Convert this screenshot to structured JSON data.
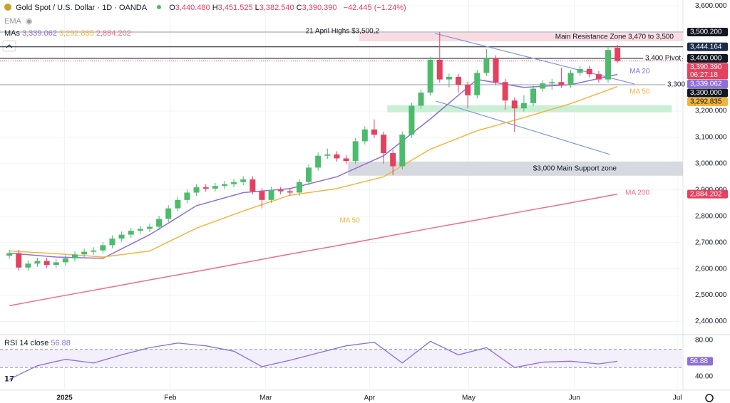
{
  "header": {
    "symbol": "Gold Spot / U.S. Dollar · 1D · OANDA",
    "ohlc": [
      {
        "key": "O",
        "value": "3,440.480"
      },
      {
        "key": "H",
        "value": "3,451.525"
      },
      {
        "key": "L",
        "value": "3,382.540"
      },
      {
        "key": "C",
        "value": "3,390.390"
      }
    ],
    "change": "−42.445 (−1.24%)",
    "ema": "EMA",
    "mas_label": "MAs",
    "mas_values": [
      "3,339.062",
      "3,292.835",
      "2,884.202"
    ]
  },
  "chart_data": [
    {
      "type": "candlestick",
      "up_color": "#4cbb6c",
      "down_color": "#e5405e",
      "open": [
        2650,
        2660,
        2605,
        2620,
        2630,
        2615,
        2625,
        2640,
        2655,
        2665,
        2670,
        2690,
        2715,
        2730,
        2745,
        2752,
        2760,
        2790,
        2830,
        2862,
        2890,
        2910,
        2905,
        2915,
        2922,
        2930,
        2940,
        2895,
        2862,
        2900,
        2895,
        2890,
        2930,
        2985,
        3030,
        3035,
        3020,
        3010,
        3085,
        3130,
        3110,
        3040,
        2990,
        3110,
        3220,
        3270,
        3395,
        3320,
        3330,
        3300,
        3260,
        3345,
        3400,
        3310,
        3240,
        3210,
        3230,
        3285,
        3305,
        3310,
        3300,
        3345,
        3360,
        3340,
        3320,
        3440.48
      ],
      "high": [
        2672,
        2672,
        2632,
        2642,
        2642,
        2637,
        2652,
        2667,
        2677,
        2682,
        2702,
        2727,
        2742,
        2757,
        2764,
        2772,
        2802,
        2842,
        2874,
        2902,
        2922,
        2922,
        2927,
        2934,
        2942,
        2952,
        2952,
        2907,
        2912,
        2912,
        2907,
        2942,
        2997,
        3042,
        3057,
        3047,
        3032,
        3097,
        3142,
        3168,
        3122,
        3052,
        3122,
        3232,
        3282,
        3407,
        3500,
        3342,
        3342,
        3312,
        3357,
        3435,
        3412,
        3322,
        3252,
        3260,
        3297,
        3317,
        3322,
        3365,
        3357,
        3372,
        3372,
        3352,
        3444,
        3451.525
      ],
      "low": [
        2638,
        2593,
        2593,
        2608,
        2603,
        2603,
        2613,
        2628,
        2643,
        2653,
        2658,
        2678,
        2703,
        2718,
        2733,
        2740,
        2748,
        2778,
        2818,
        2850,
        2878,
        2893,
        2893,
        2903,
        2910,
        2918,
        2883,
        2830,
        2850,
        2883,
        2878,
        2878,
        2918,
        2973,
        3018,
        3008,
        2998,
        2998,
        3073,
        3098,
        3000,
        2957,
        2978,
        3098,
        3208,
        3258,
        3308,
        3290,
        3270,
        3210,
        3248,
        3333,
        3298,
        3205,
        3121,
        3198,
        3218,
        3273,
        3280,
        3288,
        3288,
        3333,
        3328,
        3308,
        3308,
        3382.54
      ],
      "close": [
        2660,
        2605,
        2620,
        2630,
        2615,
        2625,
        2640,
        2655,
        2665,
        2670,
        2690,
        2715,
        2730,
        2745,
        2752,
        2760,
        2790,
        2830,
        2862,
        2890,
        2910,
        2905,
        2915,
        2922,
        2930,
        2940,
        2895,
        2862,
        2900,
        2895,
        2890,
        2930,
        2985,
        3030,
        3035,
        3020,
        3010,
        3085,
        3130,
        3110,
        3040,
        2990,
        3110,
        3220,
        3270,
        3395,
        3320,
        3330,
        3300,
        3260,
        3345,
        3400,
        3310,
        3240,
        3210,
        3230,
        3285,
        3305,
        3310,
        3300,
        3345,
        3360,
        3340,
        3320,
        3432,
        3390.39
      ],
      "xlim": [
        -1,
        72
      ],
      "ylim": [
        2350,
        3622
      ],
      "grid": true,
      "yticks": [
        {
          "value": 2400,
          "label": "2,400.000"
        },
        {
          "value": 2500,
          "label": "2,500.000"
        },
        {
          "value": 2600,
          "label": "2,600.000"
        },
        {
          "value": 2700,
          "label": "2,700.000"
        },
        {
          "value": 2800,
          "label": "2,800.000"
        },
        {
          "value": 2900,
          "label": "2,900.000"
        },
        {
          "value": 3000,
          "label": "3,000.000"
        },
        {
          "value": 3100,
          "label": "3,100.000"
        },
        {
          "value": 3200,
          "label": "3,200.000"
        },
        {
          "value": 3300,
          "label": "3,300.000"
        },
        {
          "value": 3400,
          "label": "3,400.000"
        },
        {
          "value": 3500,
          "label": "3,500.000"
        },
        {
          "value": 3600,
          "label": "3,600.000"
        }
      ],
      "xticks": [
        {
          "value": 5.9,
          "label": "2025"
        },
        {
          "value": 17.2,
          "label": "Feb"
        },
        {
          "value": 27.4,
          "label": "Mar"
        },
        {
          "value": 38.5,
          "label": "Apr"
        },
        {
          "value": 49.1,
          "label": "May"
        },
        {
          "value": 60.4,
          "label": "Jun"
        },
        {
          "value": 71.4,
          "label": "Jul"
        }
      ],
      "series": [
        {
          "name": "MA 20",
          "color": "#8e6fd8",
          "x": [
            0,
            5,
            10,
            15,
            20,
            25,
            30,
            35,
            40,
            45,
            50,
            55,
            60,
            65
          ],
          "values": [
            2660,
            2645,
            2640,
            2730,
            2840,
            2890,
            2905,
            2950,
            3030,
            3170,
            3320,
            3290,
            3300,
            3339.062
          ]
        },
        {
          "name": "MA 50",
          "color": "#f2b53c",
          "x": [
            0,
            5,
            10,
            15,
            20,
            25,
            30,
            35,
            40,
            45,
            50,
            55,
            60,
            65
          ],
          "values": [
            2668,
            2658,
            2645,
            2668,
            2755,
            2820,
            2880,
            2905,
            2950,
            3055,
            3125,
            3175,
            3228,
            3292.835
          ]
        },
        {
          "name": "MA 200",
          "color": "#ec6f86",
          "x": [
            0,
            5,
            10,
            15,
            20,
            25,
            30,
            35,
            40,
            45,
            50,
            55,
            60,
            65
          ],
          "values": [
            2460,
            2493,
            2525,
            2558,
            2590,
            2623,
            2656,
            2688,
            2721,
            2754,
            2786,
            2819,
            2851,
            2884.202
          ]
        }
      ],
      "zones": [
        {
          "label": "Main Resistance Zone 3,470 to 3,500",
          "from": 3465,
          "to": 3497,
          "x": [
            37.4,
            72
          ],
          "color": "#fadbe2"
        },
        {
          "from": 3195,
          "to": 3222,
          "x": [
            40.4,
            70.8
          ],
          "color": "#c9efd4"
        },
        {
          "label": "$3,000 Main Support zone",
          "from": 2954,
          "to": 3008,
          "x": [
            36.2,
            72
          ],
          "color": "#d6d9df"
        }
      ],
      "levels": [
        {
          "value": 3500.2,
          "color": "#9598a1",
          "label": "21 April Highs $3,500,2"
        },
        {
          "value": 3444.164,
          "color": "#131722"
        },
        {
          "value": 3400,
          "color": "#131722",
          "label": "3,400 Pivot"
        },
        {
          "value": 3300,
          "color": "#9598a1",
          "label": "3,300"
        },
        {
          "value": 3390.39,
          "color": "#e5405e",
          "dashed": true
        }
      ],
      "trendlines": [
        {
          "x": [
            45.5,
            66.8
          ],
          "y": [
            3495,
            3303
          ],
          "color": "#8196e6"
        },
        {
          "x": [
            45.6,
            64.2
          ],
          "y": [
            3238,
            3035
          ],
          "color": "#8196e6"
        }
      ],
      "price_labels": [
        {
          "value": 3500.2,
          "label": "3,500.200",
          "bg": "#131722"
        },
        {
          "value": 3444.164,
          "label": "3,444.164",
          "bg": "#1c2b4a"
        },
        {
          "value": 3400,
          "label": "3,400.000",
          "bg": "#131722"
        },
        {
          "value": 3390.39,
          "label": "3,390.390",
          "sub": "06:27:18",
          "bg": "#e5405e"
        },
        {
          "value": 3339.062,
          "label": "3,339.062",
          "bg": "#8e6fd8"
        },
        {
          "value": 3300,
          "label": "3,300.000",
          "bg": "#131722"
        },
        {
          "value": 3292.835,
          "label": "3,292.835",
          "bg": "#f2b53c",
          "fg": "#131722"
        },
        {
          "value": 2884.202,
          "label": "2,884.202",
          "bg": "#e5405e"
        }
      ]
    },
    {
      "type": "line",
      "title": "RSI 14 close",
      "xlim": [
        -1,
        72
      ],
      "ylim": [
        25,
        86.3
      ],
      "bands": [
        70,
        50
      ],
      "yticks": [
        {
          "value": 80,
          "label": "80.00"
        },
        {
          "value": 40,
          "label": "40.00"
        }
      ],
      "series": [
        {
          "color": "#8e6fd8",
          "x": [
            0,
            3,
            6,
            9,
            12,
            15,
            18,
            21,
            24,
            27,
            30,
            33,
            36,
            39,
            42,
            45,
            48,
            51,
            54,
            57,
            60,
            63,
            65
          ],
          "values": [
            37,
            52,
            59,
            55,
            64,
            72,
            77,
            74,
            68,
            51,
            58,
            66,
            74,
            78,
            55,
            79,
            64,
            72,
            50,
            56,
            57,
            54,
            56.88
          ]
        }
      ]
    }
  ]
}
